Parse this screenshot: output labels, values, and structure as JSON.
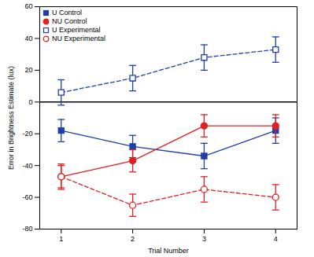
{
  "chart_data": {
    "type": "line",
    "x_label": "Trial Number",
    "y_label": "Error in Brightness Estimate (lux)",
    "x": [
      1,
      2,
      3,
      4
    ],
    "xlim": [
      0.7,
      4.3
    ],
    "xticks": [
      1,
      2,
      3,
      4
    ],
    "ylim": [
      -80,
      60
    ],
    "yticks": [
      -80,
      -60,
      -40,
      -20,
      0,
      20,
      40,
      60
    ],
    "zero_line": 0,
    "grid": false,
    "legend": "top-left",
    "series": [
      {
        "name": "U Control",
        "color": "#1f3fa8",
        "marker": "square",
        "line_style": "solid",
        "values": [
          -18,
          -28,
          -34,
          -18
        ],
        "errors": [
          7,
          7,
          8,
          8
        ]
      },
      {
        "name": "NU Control",
        "color": "#e02020",
        "marker": "circle",
        "line_style": "solid",
        "values": [
          -47,
          -37,
          -15,
          -15
        ],
        "errors": [
          7,
          7,
          7,
          7
        ]
      },
      {
        "name": "U Experimental",
        "color": "#1f3fa8",
        "marker": "square-open",
        "line_style": "dashed",
        "values": [
          6,
          15,
          28,
          33
        ],
        "errors": [
          8,
          8,
          8,
          8
        ]
      },
      {
        "name": "NU Experimental",
        "color": "#e02020",
        "marker": "circle-open",
        "line_style": "dashed",
        "values": [
          -47,
          -65,
          -55,
          -60
        ],
        "errors": [
          8,
          7,
          8,
          8
        ]
      }
    ]
  }
}
